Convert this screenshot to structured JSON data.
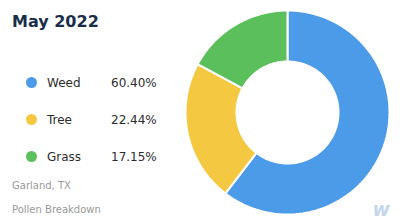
{
  "chart_data": {
    "type": "donut",
    "title": "May 2022",
    "subtitle": [
      "Garland, TX",
      "Pollen Breakdown"
    ],
    "categories": [
      "Weed",
      "Tree",
      "Grass"
    ],
    "values": [
      60.4,
      22.44,
      17.15
    ],
    "value_labels": [
      "60.40%",
      "22.44%",
      "17.15%"
    ],
    "colors": [
      "#4C9BE8",
      "#F5C842",
      "#5BBF5B"
    ],
    "legend": "left",
    "annotations": [
      "w"
    ]
  }
}
